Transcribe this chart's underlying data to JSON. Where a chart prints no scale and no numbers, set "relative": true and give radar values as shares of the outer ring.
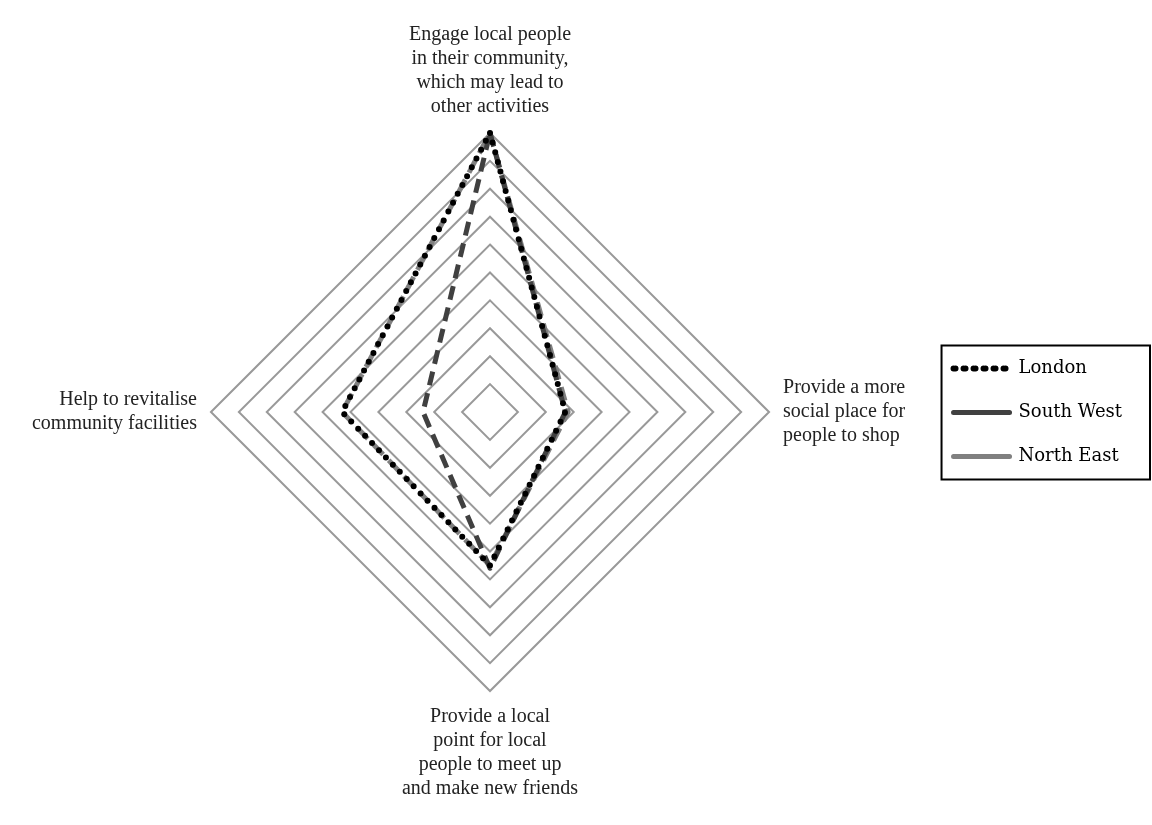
{
  "chart_data": {
    "type": "radar",
    "relative": true,
    "grid": true,
    "legend": "right",
    "marker": "none",
    "categories": [
      "Engage local people in their community, which may lead to other activities",
      "Provide a more social place for people to shop",
      "Provide a local point for local people to meet up and make new friends",
      "Help to revitalise community facilities"
    ],
    "series": [
      {
        "name": "London",
        "color": "#000000",
        "line_style": "dotted",
        "values": [
          1.0,
          0.27,
          0.55,
          0.53
        ]
      },
      {
        "name": "South West",
        "color": "#404040",
        "line_style": "dashed",
        "values": [
          1.0,
          0.27,
          0.56,
          0.24
        ]
      },
      {
        "name": "North East",
        "color": "#808080",
        "line_style": "dashed",
        "values": [
          1.0,
          0.28,
          0.55,
          0.53
        ]
      }
    ]
  }
}
